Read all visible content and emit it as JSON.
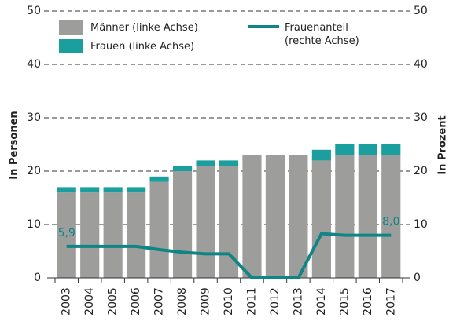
{
  "chart_data": {
    "type": "bar-line",
    "categories": [
      "2003",
      "2004",
      "2005",
      "2006",
      "2007",
      "2008",
      "2009",
      "2010",
      "2011",
      "2012",
      "2013",
      "2014",
      "2015",
      "2016",
      "2017"
    ],
    "series": [
      {
        "name": "Männer (linke Achse)",
        "color": "#9d9d9c",
        "kind": "bar",
        "values": [
          16,
          16,
          16,
          16,
          18,
          20,
          21,
          21,
          23,
          23,
          23,
          22,
          23,
          23,
          23
        ]
      },
      {
        "name": "Frauen (linke Achse)",
        "color": "#1a9e9e",
        "kind": "bar",
        "values": [
          1,
          1,
          1,
          1,
          1,
          1,
          1,
          1,
          0,
          0,
          0,
          2,
          2,
          2,
          2
        ]
      },
      {
        "name": "Frauenanteil (rechte Achse)",
        "color": "#0f8585",
        "kind": "line",
        "axis": "y2",
        "values": [
          5.9,
          5.9,
          5.9,
          5.9,
          5.3,
          4.8,
          4.5,
          4.5,
          0,
          0,
          0,
          8.3,
          8.0,
          8.0,
          8.0
        ],
        "value_labels": [
          "5,9",
          null,
          null,
          null,
          null,
          null,
          null,
          null,
          null,
          null,
          null,
          null,
          null,
          null,
          "8,0"
        ]
      }
    ],
    "ylabel": "In Personen",
    "y2label": "In Prozent",
    "ylim": [
      0,
      50
    ],
    "yticks": [
      0,
      10,
      20,
      30,
      40,
      50
    ],
    "y2lim": [
      0,
      50
    ],
    "y2ticks": [
      0,
      10,
      20,
      30,
      40,
      50
    ],
    "grid": true
  }
}
